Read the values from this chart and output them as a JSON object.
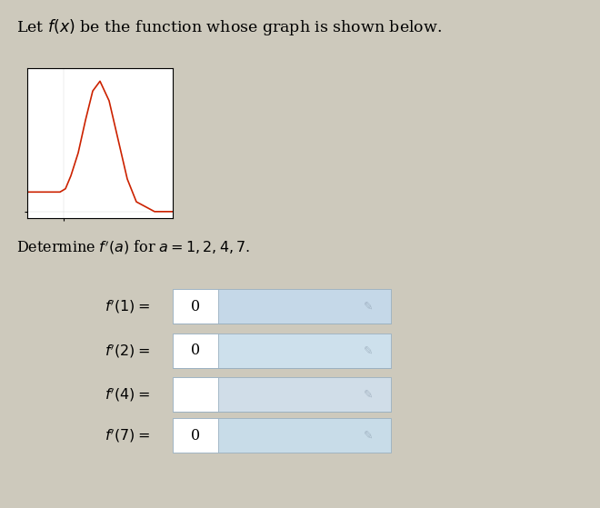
{
  "bg_color": "#cdc9bc",
  "title_text": "Let $f(x)$ be the function whose graph is shown below.",
  "title_fontsize": 12.5,
  "determine_text": "Determine $f'(a)$ for $a = 1, 2, 4, 7.$",
  "determine_fontsize": 11.5,
  "rows": [
    {
      "label": "$f'(1) =$",
      "value": "0"
    },
    {
      "label": "$f'(2) =$",
      "value": "0"
    },
    {
      "label": "$f'(4) =$",
      "value": ""
    },
    {
      "label": "$f'(7) =$",
      "value": "0"
    }
  ],
  "row_box_colors": [
    "#c5d8e8",
    "#cde0ec",
    "#d0dde8",
    "#c8dce8"
  ],
  "graph_x": [
    0.0,
    1.0,
    1.8,
    2.1,
    2.4,
    2.8,
    3.2,
    3.6,
    4.0,
    4.5,
    5.0,
    5.5,
    6.0,
    7.0,
    8.0
  ],
  "graph_y": [
    0.3,
    0.3,
    0.3,
    0.35,
    0.55,
    0.9,
    1.4,
    1.85,
    2.0,
    1.7,
    1.1,
    0.5,
    0.15,
    0.0,
    0.0
  ],
  "graph_color": "#cc2200",
  "graph_xlim": [
    0,
    8
  ],
  "graph_ylim": [
    -0.1,
    2.2
  ]
}
